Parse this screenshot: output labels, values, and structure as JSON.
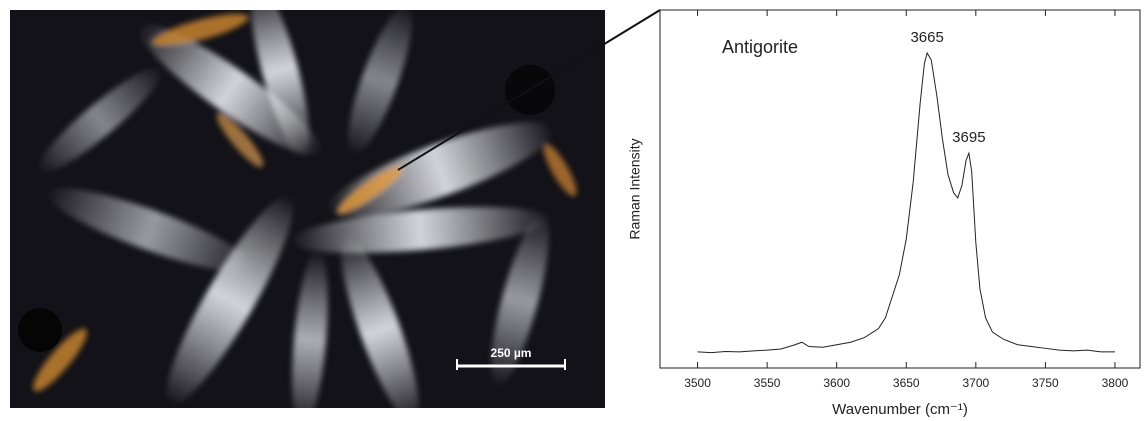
{
  "image": {
    "scale_bar": "250 µm"
  },
  "chart_data": {
    "type": "line",
    "x_label": "Wavenumber (cm⁻¹)",
    "y_label": "Raman Intensity",
    "x": [
      3500,
      3510,
      3520,
      3530,
      3540,
      3550,
      3560,
      3570,
      3575,
      3580,
      3590,
      3600,
      3610,
      3620,
      3630,
      3635,
      3640,
      3645,
      3650,
      3655,
      3660,
      3663,
      3665,
      3668,
      3672,
      3676,
      3680,
      3684,
      3687,
      3690,
      3693,
      3695,
      3697,
      3700,
      3703,
      3707,
      3712,
      3720,
      3730,
      3740,
      3750,
      3760,
      3770,
      3780,
      3790,
      3800
    ],
    "series": [
      {
        "name": "Antigorite",
        "color": "#222222",
        "values": [
          4.5,
          4.3,
          4.6,
          4.5,
          4.8,
          5,
          5.3,
          6.5,
          7.2,
          6,
          5.8,
          6.5,
          7.2,
          8.5,
          11,
          14,
          20,
          26,
          36,
          52,
          74,
          85,
          88,
          86,
          76,
          64,
          54,
          49,
          47.5,
          51,
          58,
          60,
          55,
          35,
          22,
          14,
          10,
          8,
          6.5,
          6,
          5.5,
          5,
          4.8,
          5,
          4.5,
          4.5
        ]
      }
    ],
    "annotations": [
      {
        "label": "3665",
        "x": 3665,
        "y": 88
      },
      {
        "label": "3695",
        "x": 3695,
        "y": 60
      }
    ],
    "xlim": [
      3473,
      3818
    ],
    "xticks": [
      3500,
      3550,
      3600,
      3650,
      3700,
      3750,
      3800
    ],
    "ylim": [
      0,
      100
    ],
    "grid": false
  }
}
